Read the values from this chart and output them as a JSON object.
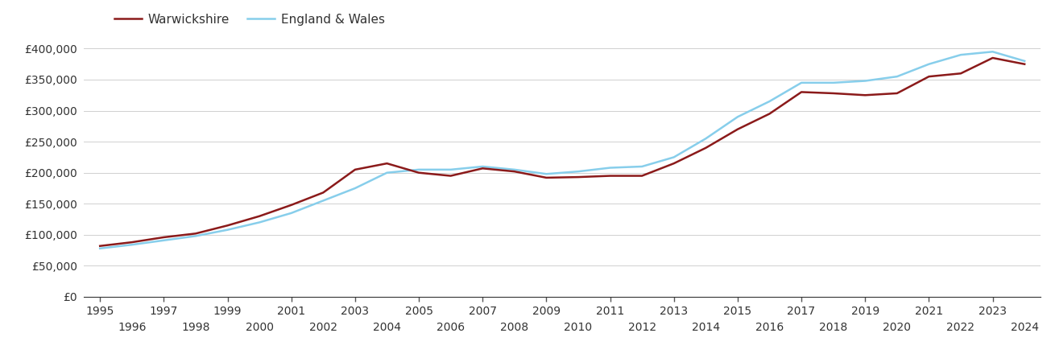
{
  "warwickshire": {
    "years": [
      1995,
      1996,
      1997,
      1998,
      1999,
      2000,
      2001,
      2002,
      2003,
      2004,
      2005,
      2006,
      2007,
      2008,
      2009,
      2010,
      2011,
      2012,
      2013,
      2014,
      2015,
      2016,
      2017,
      2018,
      2019,
      2020,
      2021,
      2022,
      2023,
      2024
    ],
    "values": [
      82000,
      88000,
      96000,
      102000,
      115000,
      130000,
      148000,
      168000,
      205000,
      215000,
      200000,
      195000,
      207000,
      202000,
      192000,
      193000,
      195000,
      195000,
      215000,
      240000,
      270000,
      295000,
      330000,
      328000,
      325000,
      328000,
      355000,
      360000,
      385000,
      375000
    ]
  },
  "england_wales": {
    "years": [
      1995,
      1996,
      1997,
      1998,
      1999,
      2000,
      2001,
      2002,
      2003,
      2004,
      2005,
      2006,
      2007,
      2008,
      2009,
      2010,
      2011,
      2012,
      2013,
      2014,
      2015,
      2016,
      2017,
      2018,
      2019,
      2020,
      2021,
      2022,
      2023,
      2024
    ],
    "values": [
      78000,
      84000,
      91000,
      98000,
      108000,
      120000,
      135000,
      155000,
      175000,
      200000,
      205000,
      205000,
      210000,
      205000,
      198000,
      202000,
      208000,
      210000,
      225000,
      255000,
      290000,
      315000,
      345000,
      345000,
      348000,
      355000,
      375000,
      390000,
      395000,
      380000
    ]
  },
  "warwickshire_color": "#8b1a1a",
  "england_wales_color": "#87ceeb",
  "warwickshire_label": "Warwickshire",
  "england_wales_label": "England & Wales",
  "ylim": [
    0,
    420000
  ],
  "yticks": [
    0,
    50000,
    100000,
    150000,
    200000,
    250000,
    300000,
    350000,
    400000
  ],
  "ytick_labels": [
    "£0",
    "£50,000",
    "£100,000",
    "£150,000",
    "£200,000",
    "£250,000",
    "£300,000",
    "£350,000",
    "£400,000"
  ],
  "xlim_min": 1994.5,
  "xlim_max": 2024.5,
  "odd_xticks": [
    1995,
    1997,
    1999,
    2001,
    2003,
    2005,
    2007,
    2009,
    2011,
    2013,
    2015,
    2017,
    2019,
    2021,
    2023
  ],
  "even_xticks": [
    1996,
    1998,
    2000,
    2002,
    2004,
    2006,
    2008,
    2010,
    2012,
    2014,
    2016,
    2018,
    2020,
    2022,
    2024
  ],
  "line_width": 1.8,
  "background_color": "#ffffff",
  "grid_color": "#d0d0d0"
}
